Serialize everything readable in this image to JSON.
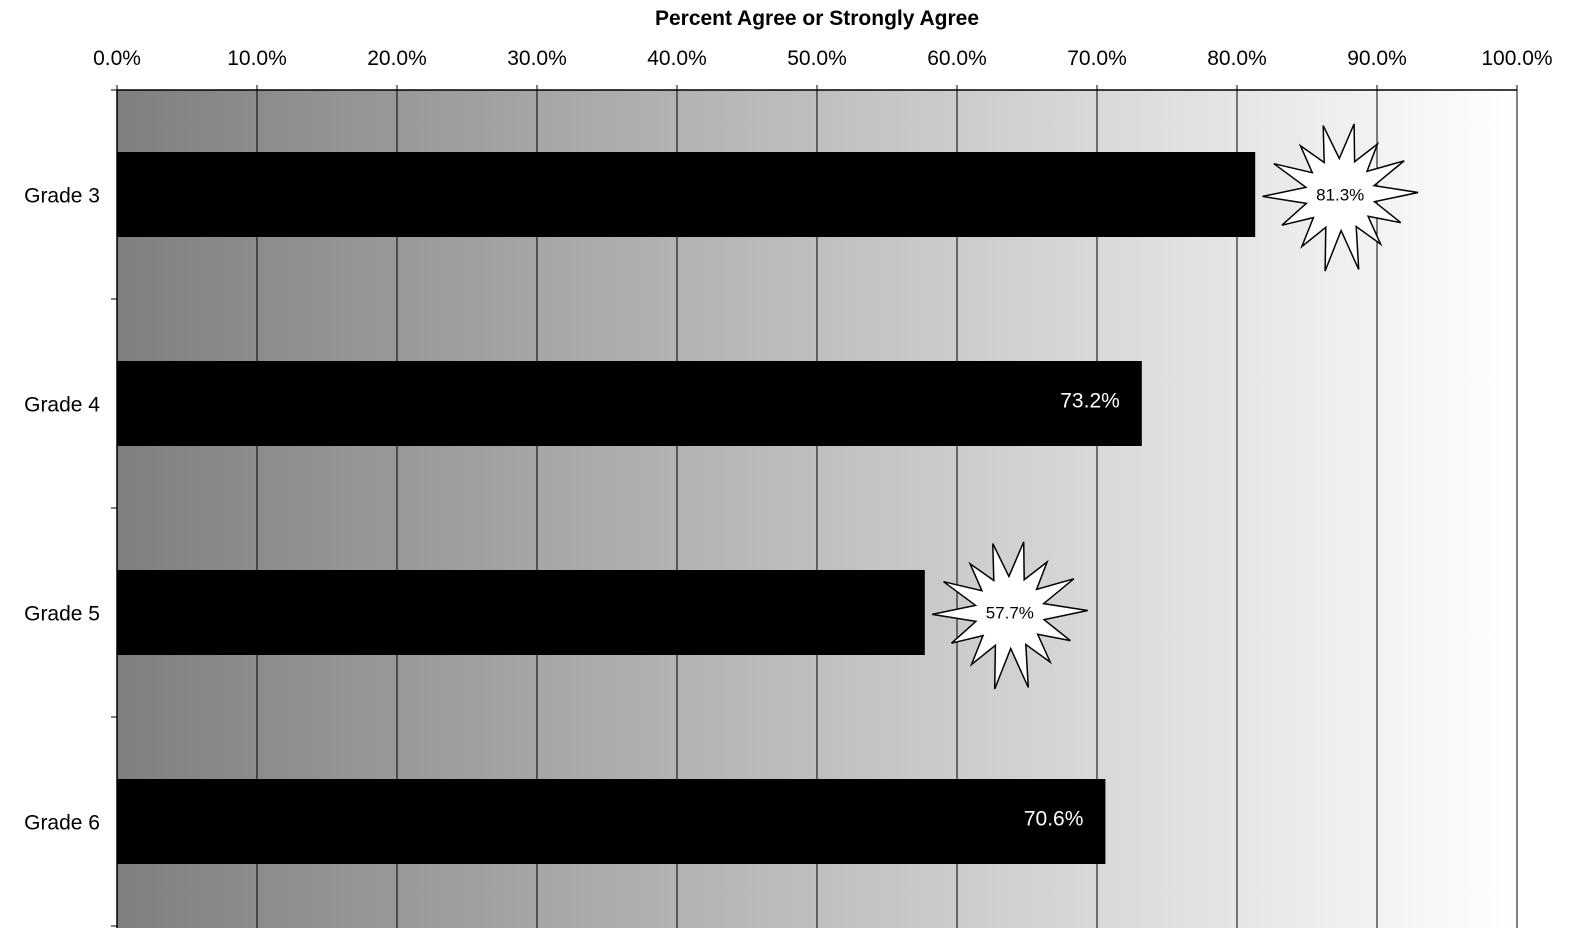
{
  "chart_data": {
    "type": "bar",
    "orientation": "horizontal",
    "title": "",
    "xlabel": "Percent Agree or Strongly Agree",
    "ylabel": "",
    "x_axis_position": "top",
    "categories": [
      "Grade 3",
      "Grade 4",
      "Grade 5",
      "Grade 6"
    ],
    "values": [
      81.3,
      73.2,
      57.7,
      70.6
    ],
    "data_labels": [
      "81.3%",
      "73.2%",
      "57.7%",
      "70.6%"
    ],
    "highlighted": [
      true,
      false,
      true,
      false
    ],
    "xlim": [
      0,
      100
    ],
    "ticks": [
      0,
      10,
      20,
      30,
      40,
      50,
      60,
      70,
      80,
      90,
      100
    ],
    "tick_labels": [
      "0.0%",
      "10.0%",
      "20.0%",
      "30.0%",
      "40.0%",
      "50.0%",
      "60.0%",
      "70.0%",
      "80.0%",
      "90.0%",
      "100.0%"
    ],
    "grid": true,
    "legend": "none",
    "colors": {
      "bar": "#000000",
      "background_start": "#7f7f7f",
      "background_end": "#ffffff",
      "gridline": "#000000",
      "burst_fill": "#ffffff"
    }
  }
}
